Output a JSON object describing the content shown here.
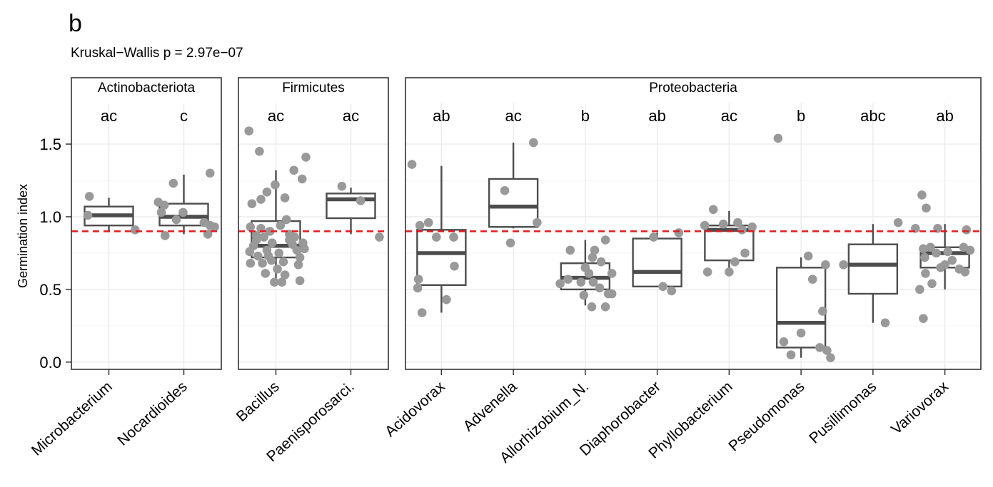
{
  "panel_label": "b",
  "test_text": "Kruskal−Wallis p = 2.97e−07",
  "colors": {
    "box": "#4d4d4d",
    "median": "#4d4d4d",
    "point": "#999999",
    "threshold": "#e41a1c",
    "grid": "#ebebeb"
  },
  "chart_data": {
    "type": "box",
    "ylabel": "Germination index",
    "ylim": [
      -0.05,
      1.78
    ],
    "yticks": [
      0.0,
      0.5,
      1.0,
      1.5
    ],
    "ytick_labels": [
      "0.0",
      "0.5",
      "1.0",
      "1.5"
    ],
    "threshold": 0.9,
    "grid": true,
    "facets": [
      {
        "title": "Actinobacteriota",
        "groups": [
          {
            "name": "Microbacterium",
            "letter": "ac",
            "box": {
              "whisker_low": 0.9,
              "q1": 0.94,
              "median": 1.01,
              "q3": 1.07,
              "whisker_high": 1.13
            },
            "points": [
              [
                -0.26,
                1.14
              ],
              [
                -0.28,
                1.01
              ],
              [
                0.35,
                0.91
              ]
            ]
          },
          {
            "name": "Nocardioides",
            "letter": "c",
            "box": {
              "whisker_low": 0.88,
              "q1": 0.94,
              "median": 1.0,
              "q3": 1.09,
              "whisker_high": 1.29
            },
            "points": [
              [
                -0.34,
                1.1
              ],
              [
                -0.26,
                1.08
              ],
              [
                -0.3,
                1.03
              ],
              [
                -0.14,
                1.23
              ],
              [
                -0.1,
                0.98
              ],
              [
                -0.01,
                1.03
              ],
              [
                -0.25,
                0.87
              ],
              [
                0.27,
                0.96
              ],
              [
                0.32,
                0.88
              ],
              [
                0.35,
                1.3
              ],
              [
                0.35,
                0.94
              ],
              [
                0.41,
                0.93
              ]
            ]
          }
        ]
      },
      {
        "title": "Firmicutes",
        "groups": [
          {
            "name": "Bacillus",
            "letter": "ac",
            "box": {
              "whisker_low": 0.55,
              "q1": 0.72,
              "median": 0.8,
              "q3": 0.97,
              "whisker_high": 1.32
            },
            "points": [
              [
                -0.36,
                1.59
              ],
              [
                -0.22,
                1.45
              ],
              [
                -0.32,
                1.09
              ],
              [
                -0.2,
                1.12
              ],
              [
                -0.12,
                1.17
              ],
              [
                -0.01,
                1.22
              ],
              [
                0.12,
                1.13
              ],
              [
                0.24,
                1.32
              ],
              [
                0.35,
                1.26
              ],
              [
                0.4,
                1.41
              ],
              [
                -0.34,
                0.93
              ],
              [
                -0.26,
                0.87
              ],
              [
                -0.3,
                0.8
              ],
              [
                -0.35,
                0.76
              ],
              [
                -0.2,
                0.92
              ],
              [
                -0.16,
                0.86
              ],
              [
                -0.08,
                0.9
              ],
              [
                -0.05,
                0.82
              ],
              [
                -0.12,
                0.77
              ],
              [
                -0.24,
                0.73
              ],
              [
                -0.34,
                0.68
              ],
              [
                -0.18,
                0.68
              ],
              [
                -0.06,
                0.7
              ],
              [
                0.04,
                0.75
              ],
              [
                0.02,
                0.64
              ],
              [
                0.14,
                0.98
              ],
              [
                0.18,
                0.88
              ],
              [
                0.22,
                0.81
              ],
              [
                0.25,
                0.86
              ],
              [
                0.28,
                0.77
              ],
              [
                0.32,
                0.72
              ],
              [
                0.36,
                0.82
              ],
              [
                0.38,
                0.78
              ],
              [
                0.3,
                0.67
              ],
              [
                0.12,
                0.6
              ],
              [
                -0.02,
                0.55
              ],
              [
                0.08,
                0.55
              ],
              [
                -0.26,
                0.84
              ],
              [
                -0.1,
                0.73
              ],
              [
                0.06,
                0.94
              ],
              [
                0.18,
                0.84
              ],
              [
                0.32,
                0.56
              ],
              [
                0.1,
                0.69
              ],
              [
                -0.14,
                0.61
              ]
            ]
          },
          {
            "name": "Paenisporosarci.",
            "letter": "ac",
            "box": {
              "whisker_low": 0.88,
              "q1": 0.99,
              "median": 1.12,
              "q3": 1.16,
              "whisker_high": 1.2
            },
            "points": [
              [
                -0.12,
                1.21
              ],
              [
                0.13,
                1.11
              ],
              [
                0.38,
                0.86
              ]
            ]
          }
        ]
      },
      {
        "title": "Proteobacteria",
        "groups": [
          {
            "name": "Acidovorax",
            "letter": "ab",
            "box": {
              "whisker_low": 0.34,
              "q1": 0.53,
              "median": 0.75,
              "q3": 0.91,
              "whisker_high": 1.35
            },
            "points": [
              [
                -0.41,
                1.36
              ],
              [
                -0.3,
                0.94
              ],
              [
                -0.18,
                0.96
              ],
              [
                -0.32,
                0.57
              ],
              [
                -0.33,
                0.51
              ],
              [
                -0.27,
                0.34
              ],
              [
                -0.07,
                0.86
              ],
              [
                0.07,
                0.43
              ],
              [
                0.17,
                0.86
              ],
              [
                0.18,
                0.66
              ]
            ]
          },
          {
            "name": "Advenella",
            "letter": "ac",
            "box": {
              "whisker_low": 0.92,
              "q1": 0.93,
              "median": 1.07,
              "q3": 1.26,
              "whisker_high": 1.51
            },
            "points": [
              [
                -0.12,
                1.18
              ],
              [
                0.28,
                1.51
              ],
              [
                -0.04,
                0.82
              ],
              [
                0.33,
                0.96
              ]
            ]
          },
          {
            "name": "Allorhizobium_N.",
            "letter": "b",
            "box": {
              "whisker_low": 0.39,
              "q1": 0.5,
              "median": 0.58,
              "q3": 0.68,
              "whisker_high": 0.84
            },
            "points": [
              [
                -0.21,
                0.77
              ],
              [
                -0.35,
                0.54
              ],
              [
                -0.24,
                0.57
              ],
              [
                -0.06,
                0.55
              ],
              [
                0.0,
                0.65
              ],
              [
                0.05,
                0.61
              ],
              [
                0.1,
                0.72
              ],
              [
                0.13,
                0.77
              ],
              [
                0.11,
                0.55
              ],
              [
                0.2,
                0.51
              ],
              [
                0.09,
                0.38
              ],
              [
                0.28,
                0.38
              ],
              [
                0.28,
                0.84
              ],
              [
                0.32,
                0.47
              ],
              [
                0.37,
                0.61
              ],
              [
                0.37,
                0.47
              ],
              [
                -0.02,
                0.46
              ],
              [
                0.22,
                0.69
              ]
            ]
          },
          {
            "name": "Diaphorobacter",
            "letter": "ab",
            "box": {
              "whisker_low": 0.52,
              "q1": 0.52,
              "median": 0.62,
              "q3": 0.85,
              "whisker_high": 0.89
            },
            "points": [
              [
                -0.05,
                0.86
              ],
              [
                0.08,
                0.52
              ],
              [
                0.2,
                0.49
              ],
              [
                0.3,
                0.89
              ]
            ]
          },
          {
            "name": "Phyllobacterium",
            "letter": "ac",
            "box": {
              "whisker_low": 0.62,
              "q1": 0.7,
              "median": 0.91,
              "q3": 0.94,
              "whisker_high": 1.04
            },
            "points": [
              [
                -0.3,
                0.62
              ],
              [
                -0.08,
                0.95
              ],
              [
                -0.22,
                1.05
              ],
              [
                0.0,
                0.62
              ],
              [
                0.08,
                0.69
              ],
              [
                0.22,
                0.75
              ],
              [
                0.12,
                0.96
              ],
              [
                0.18,
                0.91
              ],
              [
                -0.34,
                0.94
              ],
              [
                0.32,
                0.93
              ]
            ]
          },
          {
            "name": "Pseudomonas",
            "letter": "b",
            "box": {
              "whisker_low": 0.03,
              "q1": 0.1,
              "median": 0.27,
              "q3": 0.65,
              "whisker_high": 0.72
            },
            "points": [
              [
                -0.32,
                1.54
              ],
              [
                -0.24,
                0.14
              ],
              [
                0.0,
                0.2
              ],
              [
                -0.14,
                0.05
              ],
              [
                0.1,
                0.73
              ],
              [
                0.16,
                0.57
              ],
              [
                0.3,
                0.35
              ],
              [
                0.26,
                0.1
              ],
              [
                0.34,
                0.67
              ],
              [
                0.36,
                0.08
              ],
              [
                0.41,
                0.03
              ]
            ]
          },
          {
            "name": "Pusillimonas",
            "letter": "abc",
            "box": {
              "whisker_low": 0.27,
              "q1": 0.47,
              "median": 0.67,
              "q3": 0.81,
              "whisker_high": 0.95
            },
            "points": [
              [
                -0.41,
                0.67
              ],
              [
                0.35,
                0.96
              ],
              [
                0.17,
                0.27
              ]
            ]
          },
          {
            "name": "Variovorax",
            "letter": "ab",
            "box": {
              "whisker_low": 0.5,
              "q1": 0.65,
              "median": 0.75,
              "q3": 0.79,
              "whisker_high": 0.95
            },
            "points": [
              [
                -0.41,
                0.92
              ],
              [
                -0.32,
                1.15
              ],
              [
                -0.26,
                1.06
              ],
              [
                -0.3,
                0.78
              ],
              [
                -0.2,
                0.79
              ],
              [
                -0.28,
                0.72
              ],
              [
                -0.27,
                0.61
              ],
              [
                -0.18,
                0.54
              ],
              [
                -0.12,
                0.75
              ],
              [
                -0.06,
                0.65
              ],
              [
                0.0,
                0.67
              ],
              [
                -0.35,
                0.5
              ],
              [
                -0.3,
                0.3
              ],
              [
                0.04,
                0.76
              ],
              [
                0.1,
                0.7
              ],
              [
                0.2,
                0.64
              ],
              [
                0.28,
                0.62
              ],
              [
                0.3,
                0.91
              ],
              [
                0.35,
                0.77
              ],
              [
                0.26,
                0.79
              ],
              [
                -0.1,
                0.92
              ]
            ]
          }
        ]
      }
    ]
  }
}
